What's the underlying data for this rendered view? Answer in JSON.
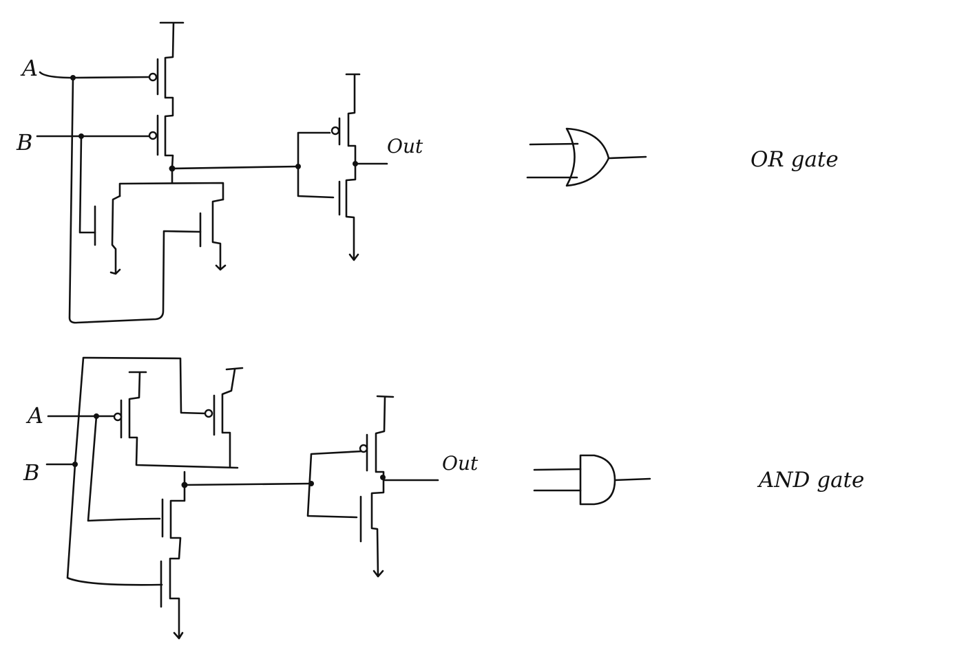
{
  "or_circuit": {
    "input_a": "A",
    "input_b": "B",
    "output": "Out",
    "caption": "OR gate"
  },
  "and_circuit": {
    "input_a": "A",
    "input_b": "B",
    "output": "Out",
    "caption": "AND gate"
  }
}
